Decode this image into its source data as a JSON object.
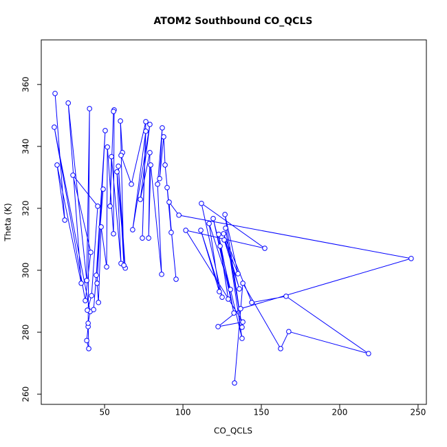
{
  "chart_data": {
    "type": "line",
    "markers": true,
    "title": "ATOM2 Southbound CO_QCLS",
    "x_label": "CO_QCLS",
    "y_label": "Theta (K)",
    "color": "#0000ff",
    "xlim": [
      9.6,
      255.3
    ],
    "ylim": [
      256.7,
      374.4
    ],
    "xticks": [
      50,
      100,
      150,
      200,
      250
    ],
    "yticks": [
      260,
      280,
      300,
      320,
      340,
      360
    ],
    "x": [
      18.4,
      24.6,
      19.7,
      35.1,
      26.8,
      38.6,
      40.4,
      39.5,
      38.6,
      39.9,
      39.5,
      40.8,
      17.9,
      37.7,
      41.2,
      29.8,
      45.6,
      41.7,
      39.0,
      43.0,
      49.1,
      44.7,
      50.4,
      45.2,
      46.1,
      47.8,
      51.3,
      51.8,
      55.7,
      56.1,
      55.7,
      53.5,
      54.4,
      60.5,
      57.9,
      63.2,
      58.8,
      62.3,
      60.1,
      61.4,
      60.5,
      67.1,
      76.3,
      74.1,
      76.3,
      67.9,
      78.9,
      72.8,
      78.9,
      78.1,
      79.4,
      86.4,
      83.8,
      86.8,
      85.1,
      87.7,
      88.6,
      95.6,
      89.9,
      92.5,
      91.2,
      97.4,
      245.6,
      136.8,
      122.4,
      138.2,
      101.8,
      152.2,
      111.8,
      125.0,
      111.4,
      123.2,
      116.7,
      130.3,
      119.3,
      132.5,
      122.8,
      128.9,
      123.7,
      137.7,
      127.2,
      137.7,
      126.8,
      135.1,
      126.3,
      136.0,
      125.9,
      143.9,
      165.8,
      218.4,
      167.5,
      162.3,
      138.2,
      132.9
    ],
    "values": [
      357.1,
      316.2,
      334.0,
      295.8,
      354.0,
      296.7,
      352.2,
      281.8,
      277.3,
      274.7,
      282.9,
      286.7,
      346.2,
      290.2,
      305.8,
      330.7,
      320.7,
      291.8,
      287.1,
      287.3,
      326.2,
      298.4,
      345.1,
      295.8,
      289.6,
      314.0,
      301.1,
      339.8,
      311.8,
      351.8,
      351.3,
      320.7,
      336.7,
      302.2,
      331.8,
      300.7,
      333.6,
      301.6,
      348.2,
      338.0,
      337.1,
      327.8,
      348.0,
      310.4,
      344.9,
      313.1,
      347.1,
      322.9,
      338.0,
      310.4,
      334.0,
      298.7,
      327.8,
      346.0,
      329.6,
      343.1,
      334.0,
      297.1,
      326.7,
      312.2,
      322.0,
      317.8,
      303.8,
      287.6,
      281.8,
      283.3,
      312.9,
      307.1,
      321.6,
      291.3,
      312.9,
      293.1,
      315.1,
      293.8,
      316.7,
      286.2,
      311.6,
      290.7,
      307.8,
      278.0,
      313.6,
      281.6,
      318.0,
      298.9,
      309.8,
      294.0,
      311.8,
      289.6,
      291.6,
      273.1,
      280.2,
      274.7,
      295.8,
      263.6
    ]
  }
}
